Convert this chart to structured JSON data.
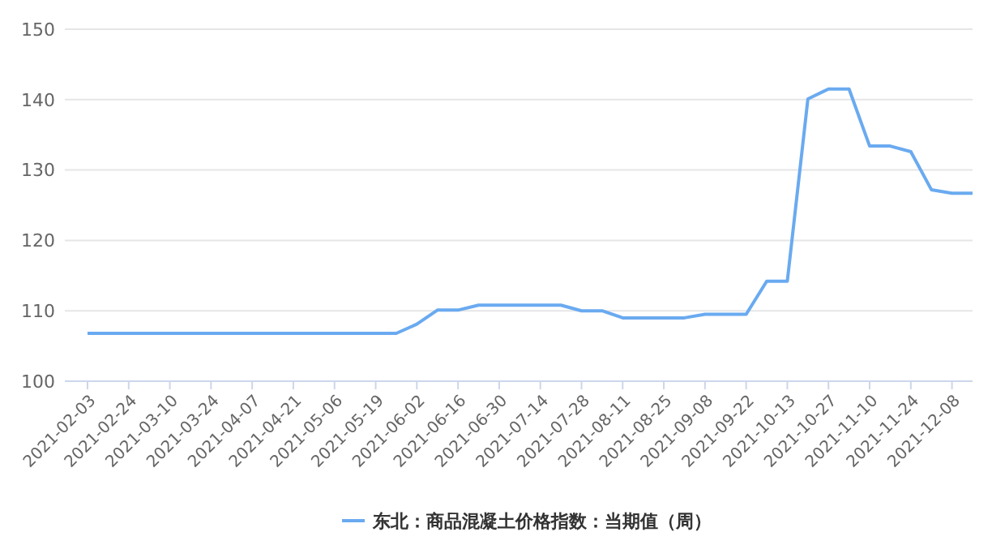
{
  "chart_data": {
    "type": "line",
    "categories": [
      "2021-02-03",
      null,
      "2021-02-24",
      null,
      "2021-03-10",
      null,
      "2021-03-24",
      null,
      "2021-04-07",
      null,
      "2021-04-21",
      null,
      "2021-05-06",
      null,
      "2021-05-19",
      null,
      "2021-06-02",
      null,
      "2021-06-16",
      null,
      "2021-06-30",
      null,
      "2021-07-14",
      null,
      "2021-07-28",
      null,
      "2021-08-11",
      null,
      "2021-08-25",
      null,
      "2021-09-08",
      null,
      "2021-09-22",
      null,
      "2021-10-13",
      null,
      "2021-10-27",
      null,
      "2021-11-10",
      null,
      "2021-11-24",
      null,
      "2021-12-08",
      null
    ],
    "series": [
      {
        "name": "东北：商品混凝土价格指数：当期值（周）",
        "color": "#6aaaf0",
        "values": [
          106.8,
          106.8,
          106.8,
          106.8,
          106.8,
          106.8,
          106.8,
          106.8,
          106.8,
          106.8,
          106.8,
          106.8,
          106.8,
          106.8,
          106.8,
          106.8,
          108.1,
          110.1,
          110.1,
          110.8,
          110.8,
          110.8,
          110.8,
          110.8,
          110.0,
          110.0,
          109.0,
          109.0,
          109.0,
          109.0,
          109.5,
          109.5,
          109.5,
          114.2,
          114.2,
          140.1,
          141.5,
          141.5,
          133.4,
          133.4,
          132.6,
          127.2,
          126.7,
          126.7
        ]
      }
    ],
    "ylim": [
      100,
      150
    ],
    "yticks": [
      100,
      110,
      120,
      130,
      140,
      150
    ],
    "grid": "y",
    "legend": "bottom",
    "marker": "none",
    "line_style": "solid"
  }
}
